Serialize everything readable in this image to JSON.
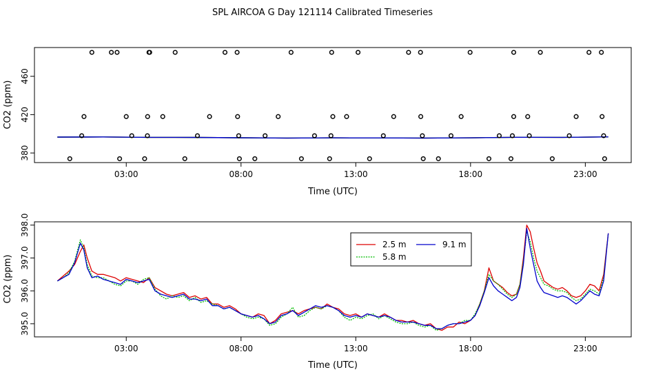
{
  "figure": {
    "title": "SPL AIRCOA G  Day 121114  Calibrated Timeseries"
  },
  "chart_data": [
    {
      "type": "scatter",
      "name": "calibration-tank-points",
      "xlabel": "Time (UTC)",
      "ylabel": "CO2 (ppm)",
      "xlim": [
        -1.0,
        25.0
      ],
      "ylim": [
        370,
        490
      ],
      "xticks": [
        3,
        8,
        13,
        18,
        23
      ],
      "xtick_labels": [
        "03:00",
        "08:00",
        "13:00",
        "18:00",
        "23:00"
      ],
      "yticks": [
        380,
        420,
        460
      ],
      "ytick_labels": [
        "380",
        "420",
        "460"
      ],
      "colors": {
        "points": "#000000",
        "line_red": "#dd0000",
        "line_green": "#00bb00",
        "line_blue": "#0000cc"
      },
      "points": {
        "t": [
          1.5,
          2.6,
          2.35,
          4.02,
          3.99,
          5.13,
          7.3,
          7.83,
          10.18,
          11.95,
          13.1,
          15.3,
          15.82,
          17.98,
          19.88,
          21.04,
          23.16,
          23.7,
          1.16,
          3.0,
          3.93,
          4.59,
          6.63,
          7.85,
          9.62,
          12.0,
          12.6,
          14.65,
          15.83,
          17.59,
          19.88,
          20.49,
          22.6,
          23.73,
          1.06,
          3.24,
          3.92,
          6.1,
          7.9,
          9.05,
          11.2,
          11.92,
          14.2,
          15.9,
          17.15,
          19.25,
          19.82,
          20.56,
          22.3,
          23.8,
          0.54,
          2.71,
          3.8,
          5.55,
          7.93,
          8.6,
          10.63,
          11.86,
          13.6,
          15.94,
          16.6,
          18.8,
          19.76,
          21.56,
          23.84
        ],
        "co2": [
          485,
          485,
          485,
          485,
          485,
          485,
          485,
          485,
          485,
          485,
          485,
          485,
          485,
          485,
          485,
          485,
          485,
          485,
          418,
          418,
          418,
          418,
          418,
          418,
          418,
          418,
          418,
          418,
          418,
          418,
          418,
          418,
          418,
          418,
          398,
          398,
          398,
          398,
          398,
          398,
          398,
          398,
          398,
          398,
          398,
          398,
          398,
          398,
          398,
          398,
          374,
          374,
          374,
          374,
          374,
          374,
          374,
          374,
          374,
          374,
          374,
          374,
          374,
          374,
          374
        ]
      },
      "line": {
        "t": [
          0,
          2,
          4,
          6,
          8,
          10,
          12,
          14,
          16,
          18,
          20,
          22,
          24
        ],
        "co2": [
          396.6,
          396.7,
          396.3,
          396.2,
          395.9,
          395.6,
          395.8,
          395.7,
          395.6,
          395.8,
          396.4,
          396.3,
          396.8
        ]
      }
    },
    {
      "type": "line",
      "name": "co2-timeseries-by-height",
      "xlabel": "Time (UTC)",
      "ylabel": "CO2 (ppm)",
      "xlim": [
        -1.0,
        25.0
      ],
      "ylim": [
        394.6,
        398.1
      ],
      "xticks": [
        3,
        8,
        13,
        18,
        23
      ],
      "xtick_labels": [
        "03:00",
        "08:00",
        "13:00",
        "18:00",
        "23:00"
      ],
      "yticks": [
        395.0,
        396.0,
        397.0,
        398.0
      ],
      "ytick_labels": [
        "395.0",
        "396.0",
        "397.0",
        "398.0"
      ],
      "legend": "top-center",
      "series": [
        {
          "name": "2.5 m",
          "color": "#dd0000",
          "t": [
            0.0,
            0.25,
            0.5,
            0.75,
            1.0,
            1.15,
            1.3,
            1.5,
            1.75,
            2.0,
            2.25,
            2.5,
            2.75,
            3.0,
            3.25,
            3.5,
            3.75,
            4.0,
            4.25,
            4.5,
            4.75,
            5.0,
            5.25,
            5.5,
            5.75,
            6.0,
            6.25,
            6.5,
            6.75,
            7.0,
            7.25,
            7.5,
            7.75,
            8.0,
            8.25,
            8.5,
            8.75,
            9.0,
            9.25,
            9.5,
            9.75,
            10.0,
            10.25,
            10.5,
            10.75,
            11.0,
            11.25,
            11.5,
            11.75,
            12.0,
            12.25,
            12.5,
            12.75,
            13.0,
            13.25,
            13.5,
            13.75,
            14.0,
            14.25,
            14.5,
            14.75,
            15.0,
            15.25,
            15.5,
            15.75,
            16.0,
            16.25,
            16.5,
            16.75,
            17.0,
            17.25,
            17.5,
            17.75,
            18.0,
            18.2,
            18.4,
            18.6,
            18.8,
            19.0,
            19.2,
            19.4,
            19.6,
            19.8,
            20.0,
            20.15,
            20.3,
            20.45,
            20.6,
            20.75,
            20.9,
            21.05,
            21.2,
            21.4,
            21.6,
            21.8,
            22.0,
            22.2,
            22.4,
            22.6,
            22.8,
            23.0,
            23.2,
            23.4,
            23.6,
            23.8,
            24.0
          ],
          "co2": [
            396.3,
            396.45,
            396.6,
            396.8,
            397.2,
            397.4,
            397.0,
            396.6,
            396.5,
            396.5,
            396.45,
            396.4,
            396.3,
            396.4,
            396.35,
            396.3,
            396.25,
            396.4,
            396.1,
            396.0,
            395.9,
            395.85,
            395.9,
            395.95,
            395.8,
            395.85,
            395.75,
            395.8,
            395.6,
            395.6,
            395.5,
            395.55,
            395.45,
            395.3,
            395.25,
            395.2,
            395.3,
            395.25,
            395.0,
            395.1,
            395.3,
            395.35,
            395.4,
            395.3,
            395.4,
            395.45,
            395.5,
            395.45,
            395.6,
            395.5,
            395.45,
            395.3,
            395.25,
            395.3,
            395.2,
            395.3,
            395.25,
            395.2,
            395.3,
            395.2,
            395.1,
            395.1,
            395.05,
            395.1,
            395.0,
            394.95,
            395.0,
            394.85,
            394.8,
            394.9,
            394.9,
            395.05,
            395.0,
            395.1,
            395.25,
            395.6,
            396.0,
            396.7,
            396.3,
            396.2,
            396.1,
            395.95,
            395.85,
            395.9,
            396.2,
            397.0,
            398.0,
            397.8,
            397.3,
            396.85,
            396.6,
            396.3,
            396.2,
            396.1,
            396.05,
            396.1,
            396.0,
            395.85,
            395.8,
            395.85,
            396.0,
            396.2,
            396.15,
            396.0,
            396.5,
            397.75
          ]
        },
        {
          "name": "5.8 m",
          "color": "#00bb00",
          "t": [
            0.0,
            0.25,
            0.5,
            0.75,
            1.0,
            1.15,
            1.3,
            1.5,
            1.75,
            2.0,
            2.25,
            2.5,
            2.75,
            3.0,
            3.25,
            3.5,
            3.75,
            4.0,
            4.25,
            4.5,
            4.75,
            5.0,
            5.25,
            5.5,
            5.75,
            6.0,
            6.25,
            6.5,
            6.75,
            7.0,
            7.25,
            7.5,
            7.75,
            8.0,
            8.25,
            8.5,
            8.75,
            9.0,
            9.25,
            9.5,
            9.75,
            10.0,
            10.25,
            10.5,
            10.75,
            11.0,
            11.25,
            11.5,
            11.75,
            12.0,
            12.25,
            12.5,
            12.75,
            13.0,
            13.25,
            13.5,
            13.75,
            14.0,
            14.25,
            14.5,
            14.75,
            15.0,
            15.25,
            15.5,
            15.75,
            16.0,
            16.25,
            16.5,
            16.75,
            17.0,
            17.25,
            17.5,
            17.75,
            18.0,
            18.2,
            18.4,
            18.6,
            18.8,
            19.0,
            19.2,
            19.4,
            19.6,
            19.8,
            20.0,
            20.15,
            20.3,
            20.45,
            20.6,
            20.75,
            20.9,
            21.05,
            21.2,
            21.4,
            21.6,
            21.8,
            22.0,
            22.2,
            22.4,
            22.6,
            22.8,
            23.0,
            23.2,
            23.4,
            23.6,
            23.8,
            24.0
          ],
          "co2": [
            396.3,
            396.4,
            396.55,
            396.9,
            397.55,
            397.3,
            396.8,
            396.45,
            396.4,
            396.4,
            396.3,
            396.2,
            396.15,
            396.3,
            396.3,
            396.2,
            396.35,
            396.4,
            396.05,
            395.85,
            395.75,
            395.85,
            395.8,
            395.85,
            395.7,
            395.8,
            395.65,
            395.7,
            395.6,
            395.55,
            395.45,
            395.5,
            395.4,
            395.3,
            395.2,
            395.15,
            395.2,
            395.15,
            394.95,
            395.0,
            395.2,
            395.3,
            395.5,
            395.2,
            395.25,
            395.4,
            395.5,
            395.45,
            395.55,
            395.5,
            395.4,
            395.2,
            395.1,
            395.2,
            395.15,
            395.25,
            395.3,
            395.15,
            395.25,
            395.15,
            395.05,
            395.0,
            395.0,
            395.05,
            394.95,
            394.9,
            394.95,
            394.8,
            394.85,
            394.95,
            395.0,
            395.0,
            395.1,
            395.1,
            395.3,
            395.6,
            396.0,
            396.5,
            396.3,
            396.2,
            396.05,
            395.9,
            395.8,
            395.9,
            396.2,
            396.9,
            397.8,
            397.5,
            397.0,
            396.6,
            396.4,
            396.2,
            396.15,
            396.05,
            396.0,
            396.0,
            395.95,
            395.8,
            395.7,
            395.75,
            395.9,
            396.05,
            396.0,
            395.9,
            396.4,
            397.75
          ]
        },
        {
          "name": "9.1 m",
          "color": "#0000cc",
          "t": [
            0.0,
            0.25,
            0.5,
            0.75,
            1.0,
            1.15,
            1.3,
            1.5,
            1.75,
            2.0,
            2.25,
            2.5,
            2.75,
            3.0,
            3.25,
            3.5,
            3.75,
            4.0,
            4.25,
            4.5,
            4.75,
            5.0,
            5.25,
            5.5,
            5.75,
            6.0,
            6.25,
            6.5,
            6.75,
            7.0,
            7.25,
            7.5,
            7.75,
            8.0,
            8.25,
            8.5,
            8.75,
            9.0,
            9.25,
            9.5,
            9.75,
            10.0,
            10.25,
            10.5,
            10.75,
            11.0,
            11.25,
            11.5,
            11.75,
            12.0,
            12.25,
            12.5,
            12.75,
            13.0,
            13.25,
            13.5,
            13.75,
            14.0,
            14.25,
            14.5,
            14.75,
            15.0,
            15.25,
            15.5,
            15.75,
            16.0,
            16.25,
            16.5,
            16.75,
            17.0,
            17.25,
            17.5,
            17.75,
            18.0,
            18.2,
            18.4,
            18.6,
            18.8,
            19.0,
            19.2,
            19.4,
            19.6,
            19.8,
            20.0,
            20.15,
            20.3,
            20.45,
            20.6,
            20.75,
            20.9,
            21.05,
            21.2,
            21.4,
            21.6,
            21.8,
            22.0,
            22.2,
            22.4,
            22.6,
            22.8,
            23.0,
            23.2,
            23.4,
            23.6,
            23.8,
            24.0
          ],
          "co2": [
            396.3,
            396.4,
            396.5,
            396.85,
            397.45,
            397.25,
            396.7,
            396.4,
            396.45,
            396.35,
            396.3,
            396.25,
            396.2,
            396.35,
            396.3,
            396.25,
            396.3,
            396.35,
            396.0,
            395.9,
            395.85,
            395.8,
            395.85,
            395.9,
            395.75,
            395.75,
            395.7,
            395.75,
            395.55,
            395.55,
            395.45,
            395.5,
            395.4,
            395.3,
            395.25,
            395.2,
            395.25,
            395.15,
            395.0,
            395.05,
            395.25,
            395.3,
            395.4,
            395.25,
            395.35,
            395.45,
            395.55,
            395.5,
            395.55,
            395.5,
            395.4,
            395.25,
            395.2,
            395.25,
            395.2,
            395.3,
            395.25,
            395.2,
            395.25,
            395.2,
            395.1,
            395.05,
            395.05,
            395.05,
            395.0,
            394.95,
            394.95,
            394.85,
            394.85,
            394.95,
            395.0,
            395.0,
            395.05,
            395.1,
            395.25,
            395.55,
            395.95,
            396.4,
            396.15,
            396.0,
            395.9,
            395.8,
            395.7,
            395.8,
            396.1,
            396.8,
            397.9,
            397.3,
            396.8,
            396.3,
            396.1,
            395.95,
            395.9,
            395.85,
            395.8,
            395.85,
            395.8,
            395.7,
            395.6,
            395.7,
            395.85,
            396.0,
            395.9,
            395.85,
            396.3,
            397.75
          ]
        }
      ]
    }
  ]
}
